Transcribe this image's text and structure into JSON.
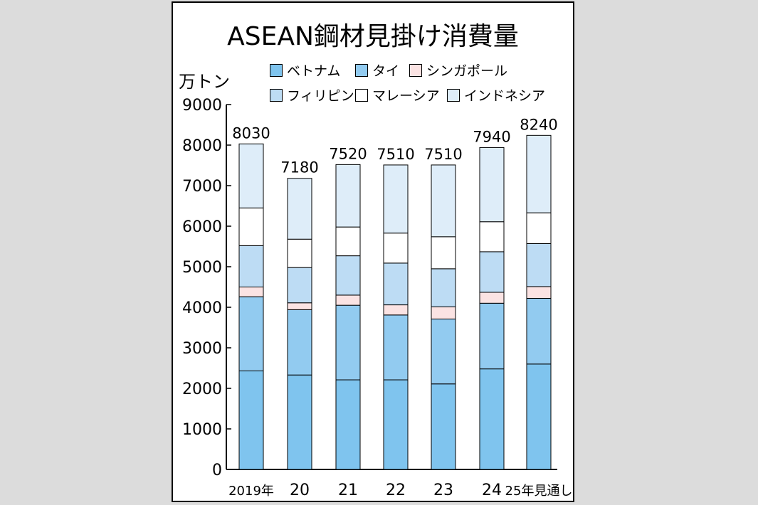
{
  "chart_data": {
    "type": "bar",
    "stacked": true,
    "title": "ASEAN鋼材見掛け消費量",
    "ylabel": "万トン",
    "ylim": [
      0,
      9000
    ],
    "yticks": [
      "0",
      "1000",
      "2000",
      "3000",
      "4000",
      "5000",
      "6000",
      "7000",
      "8000",
      "9000"
    ],
    "categories": [
      "2019年",
      "20",
      "21",
      "22",
      "23",
      "24",
      "25年見通し"
    ],
    "totals": [
      "8030",
      "7180",
      "7520",
      "7510",
      "7510",
      "7940",
      "8240"
    ],
    "series": [
      {
        "name": "ベトナム",
        "color": "#7fc4ee",
        "values": [
          2430,
          2330,
          2210,
          2210,
          2110,
          2480,
          2600
        ]
      },
      {
        "name": "タイ",
        "color": "#92cbf0",
        "values": [
          1830,
          1610,
          1840,
          1600,
          1600,
          1620,
          1620
        ]
      },
      {
        "name": "シンガポール",
        "color": "#fbe3e3",
        "values": [
          240,
          170,
          250,
          250,
          300,
          270,
          290
        ]
      },
      {
        "name": "フィリピン",
        "color": "#bddcf4",
        "values": [
          1020,
          870,
          970,
          1030,
          940,
          1000,
          1060
        ]
      },
      {
        "name": "マレーシア",
        "color": "#ffffff",
        "values": [
          930,
          700,
          710,
          740,
          790,
          740,
          760
        ]
      },
      {
        "name": "インドネシア",
        "color": "#deedf9",
        "values": [
          1580,
          1500,
          1540,
          1680,
          1770,
          1830,
          1910
        ]
      }
    ]
  }
}
